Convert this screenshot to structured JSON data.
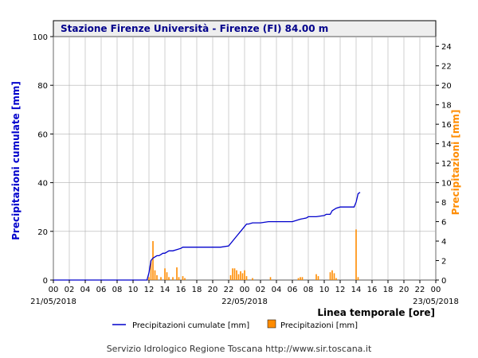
{
  "chart_data": {
    "type": "line",
    "title": "Stazione Firenze Università - Firenze (FI) 84.00 m",
    "xlabel": "Linea temporale [ore]",
    "ylabel_left": "Precipitazioni cumulate [mm]",
    "ylabel_right": "Precipitazioni [mm]",
    "ylim_left": [
      0,
      100
    ],
    "ylim_right": [
      0,
      25
    ],
    "left_ticks": [
      0,
      20,
      40,
      60,
      80,
      100
    ],
    "right_ticks": [
      0,
      2,
      4,
      6,
      8,
      10,
      12,
      14,
      16,
      18,
      20,
      22,
      24
    ],
    "x_range_hours": [
      0,
      48
    ],
    "x_tick_labels": [
      "00",
      "02",
      "04",
      "06",
      "08",
      "10",
      "12",
      "14",
      "16",
      "18",
      "20",
      "22",
      "00",
      "02",
      "04",
      "06",
      "08",
      "10",
      "12",
      "14",
      "16",
      "18",
      "20",
      "22",
      "00"
    ],
    "date_labels": [
      {
        "hour": 0,
        "text": "21/05/2018"
      },
      {
        "hour": 24,
        "text": "22/05/2018"
      },
      {
        "hour": 48,
        "text": "23/05/2018"
      }
    ],
    "grid": true,
    "legend_position": "bottom",
    "colors": {
      "cumulative": "#0000cc",
      "precipitation": "#ff8c00",
      "title": "#00008b"
    },
    "series": [
      {
        "name": "Precipitazioni cumulate [mm]",
        "kind": "line",
        "axis": "left",
        "x": [
          0,
          11.75,
          12.0,
          12.25,
          12.5,
          12.75,
          13.0,
          13.25,
          13.5,
          13.75,
          14.0,
          14.5,
          15.0,
          15.5,
          16.0,
          16.25,
          16.5,
          17.0,
          18.0,
          19.0,
          20.0,
          21.0,
          22.0,
          22.5,
          23.0,
          23.5,
          24.0,
          24.25,
          24.5,
          25.0,
          25.5,
          26.0,
          27.0,
          28.0,
          29.0,
          30.0,
          31.0,
          31.75,
          32.0,
          33.0,
          34.0,
          34.25,
          34.75,
          35.0,
          35.5,
          36.0,
          36.5,
          37.0,
          37.75,
          38.0,
          38.25,
          38.5
        ],
        "values": [
          0,
          0,
          3,
          8,
          9,
          9.5,
          10,
          10,
          10.5,
          11,
          11,
          12,
          12,
          12.5,
          13,
          13.5,
          13.5,
          13.5,
          13.5,
          13.5,
          13.5,
          13.5,
          14,
          16,
          18,
          20,
          22,
          23,
          23,
          23.5,
          23.5,
          23.5,
          24,
          24,
          24,
          24,
          25,
          25.5,
          26,
          26,
          26.5,
          27,
          27,
          28.5,
          29.5,
          30,
          30,
          30,
          30,
          32,
          35.5,
          36
        ]
      },
      {
        "name": "Precipitazioni [mm]",
        "kind": "bar",
        "axis": "right",
        "x": [
          12.0,
          12.25,
          12.5,
          12.75,
          13.0,
          13.5,
          14.0,
          14.25,
          14.5,
          15.0,
          15.5,
          15.75,
          16.25,
          16.5,
          22.25,
          22.5,
          22.75,
          23.0,
          23.25,
          23.5,
          23.75,
          24.0,
          24.25,
          25.0,
          27.25,
          30.75,
          31.0,
          31.25,
          33.0,
          33.25,
          34.75,
          35.0,
          35.25,
          35.5,
          38.0,
          38.25
        ],
        "values": [
          0.3,
          2.0,
          4.0,
          1.0,
          0.5,
          0.3,
          1.2,
          0.8,
          0.3,
          0.3,
          1.3,
          0.3,
          0.4,
          0.2,
          0.5,
          1.2,
          1.2,
          1.0,
          0.6,
          0.9,
          0.7,
          1.0,
          0.4,
          0.2,
          0.3,
          0.2,
          0.3,
          0.3,
          0.6,
          0.4,
          0.8,
          1.0,
          0.7,
          0.2,
          5.2,
          0.3
        ]
      }
    ]
  },
  "footer": "Servizio Idrologico Regione Toscana http://www.sir.toscana.it"
}
